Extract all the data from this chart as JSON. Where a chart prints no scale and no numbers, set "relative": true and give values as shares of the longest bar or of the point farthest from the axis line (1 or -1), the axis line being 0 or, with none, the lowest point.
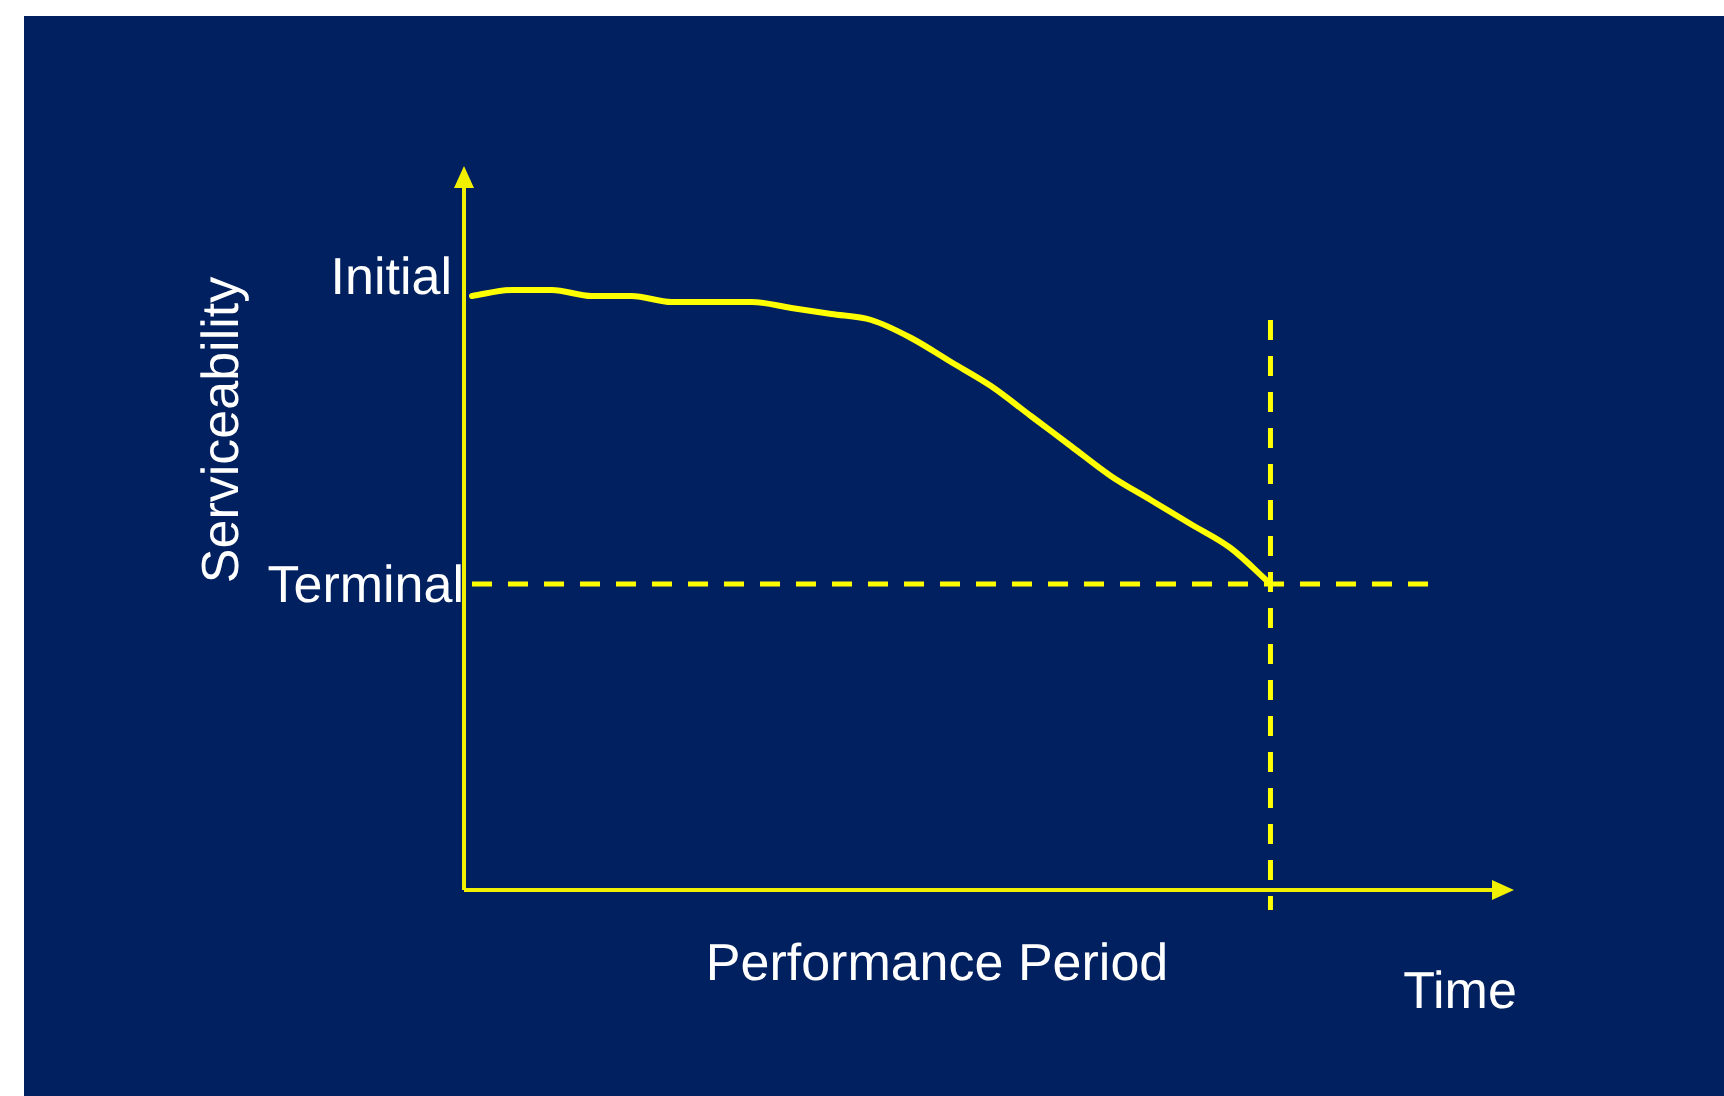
{
  "chart_data": {
    "type": "line",
    "relative": true,
    "ylabel": "Serviceability",
    "xlabel": "Performance Period",
    "categories": [
      null,
      null,
      null,
      null,
      null,
      null,
      null,
      null,
      null,
      null,
      null,
      null,
      null,
      null,
      null,
      null,
      null,
      null,
      null,
      null,
      null,
      null,
      null,
      null,
      null,
      null,
      null
    ],
    "series": [
      {
        "color": "#ffff00",
        "values": [
          0.99,
          1,
          1,
          0.99,
          0.99,
          0.98,
          0.98,
          0.98,
          0.97,
          0.96,
          0.95,
          0.92,
          0.88,
          0.84,
          0.79,
          0.74,
          0.69,
          0.65,
          0.61,
          0.57,
          0.51,
          null,
          null,
          null,
          null,
          null,
          null
        ]
      }
    ],
    "ref_lines": [
      {
        "axis": "y",
        "value": 0.51,
        "label": "Terminal",
        "color": "#ffff00",
        "line_style": "dashed"
      }
    ],
    "annotations": [
      "Initial",
      "Time"
    ],
    "marker": "none",
    "legend": false
  }
}
